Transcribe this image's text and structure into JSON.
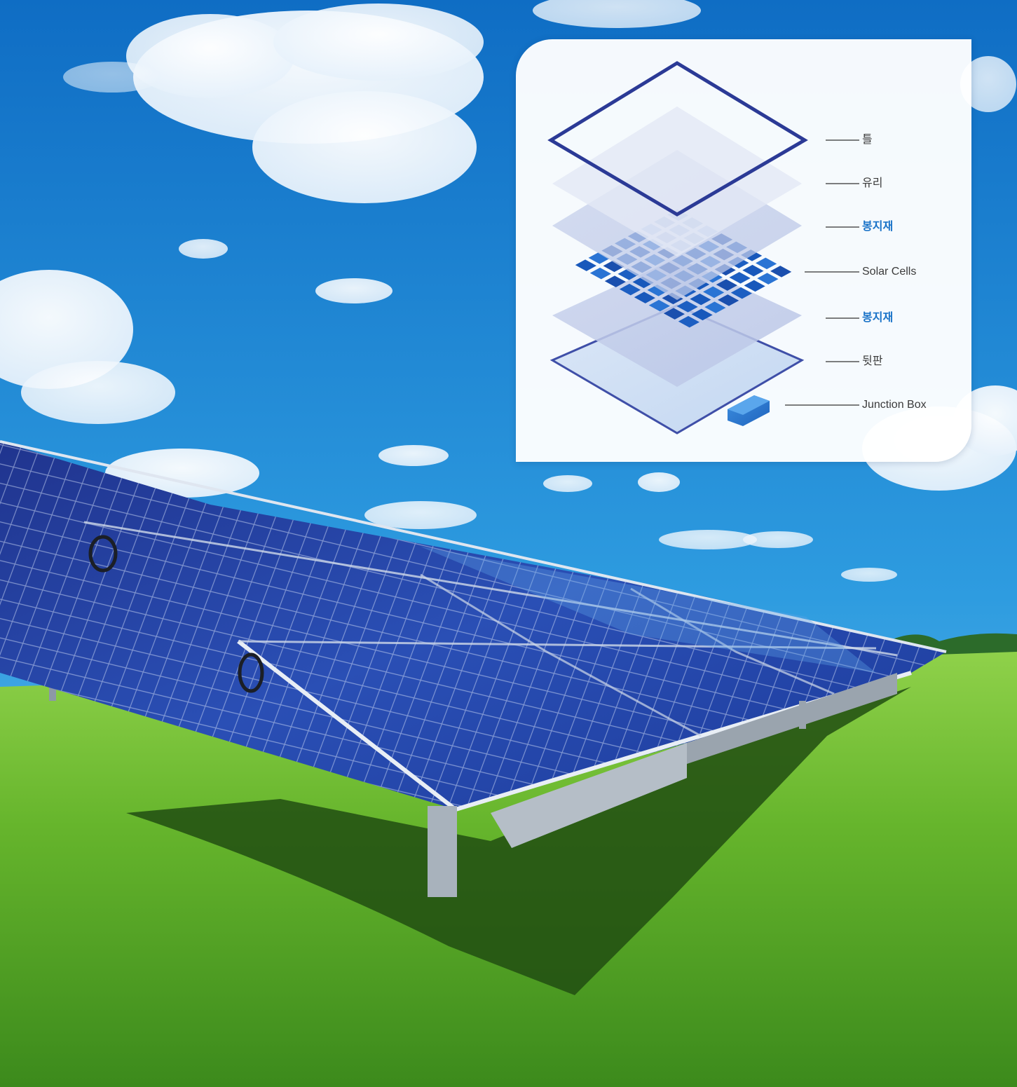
{
  "layers": [
    {
      "id": "frame",
      "label": "틀",
      "accent": false
    },
    {
      "id": "glass",
      "label": "유리",
      "accent": false
    },
    {
      "id": "encapsulant_top",
      "label": "봉지재",
      "accent": true
    },
    {
      "id": "solar_cells",
      "label": "Solar Cells",
      "accent": false
    },
    {
      "id": "encapsulant_bottom",
      "label": "봉지재",
      "accent": true
    },
    {
      "id": "backsheet",
      "label": "뒷판",
      "accent": false
    },
    {
      "id": "junction_box",
      "label": "Junction Box",
      "accent": false
    }
  ],
  "colors": {
    "sky_top": "#0f6dc4",
    "sky_bottom": "#39a6e4",
    "grass_light": "#7cc43a",
    "grass_dark": "#2f6d16",
    "panel": "#1b2f8a",
    "frame_stroke": "#2f3f9a",
    "cell_blue": "#1d5fc2",
    "accent_label": "#1a73c8"
  }
}
